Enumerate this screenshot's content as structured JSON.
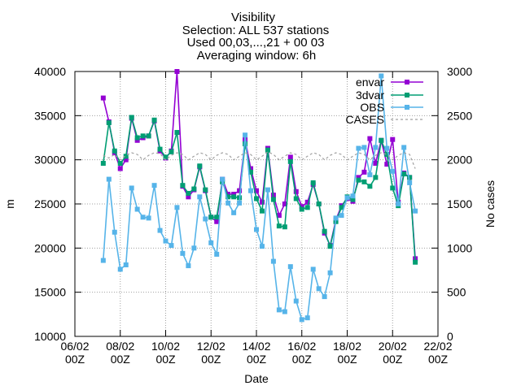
{
  "chart_data": {
    "type": "line",
    "title_lines": [
      "Visibility",
      "Selection: ALL    537 stations",
      "Used 00,03,...,21 + 00 03",
      "Averaging window:  6h"
    ],
    "xlabel": "Date",
    "ylabel": "m",
    "y2label": "No cases",
    "x_ticks": [
      {
        "t": 0,
        "label": [
          "06/02",
          "00Z"
        ]
      },
      {
        "t": 2,
        "label": [
          "08/02",
          "00Z"
        ]
      },
      {
        "t": 4,
        "label": [
          "10/02",
          "00Z"
        ]
      },
      {
        "t": 6,
        "label": [
          "12/02",
          "00Z"
        ]
      },
      {
        "t": 8,
        "label": [
          "14/02",
          "00Z"
        ]
      },
      {
        "t": 10,
        "label": [
          "16/02",
          "00Z"
        ]
      },
      {
        "t": 12,
        "label": [
          "18/02",
          "00Z"
        ]
      },
      {
        "t": 14,
        "label": [
          "20/02",
          "00Z"
        ]
      },
      {
        "t": 16,
        "label": [
          "22/02",
          "00Z"
        ]
      }
    ],
    "xlim": [
      0,
      16
    ],
    "ylim": [
      10000,
      40000
    ],
    "y_ticks": [
      10000,
      15000,
      20000,
      25000,
      30000,
      35000,
      40000
    ],
    "y2lim": [
      0,
      3000
    ],
    "y2_ticks": [
      0,
      500,
      1000,
      1500,
      2000,
      2500,
      3000
    ],
    "grid": true,
    "legend_position": "top-right",
    "series": [
      {
        "name": "envar",
        "color": "#9400d3",
        "axis": "y",
        "values": [
          37000,
          34300,
          30800,
          29000,
          30000,
          34700,
          32200,
          32500,
          32700,
          34400,
          31000,
          30200,
          31000,
          40000,
          27000,
          25800,
          26600,
          29200,
          26500,
          23500,
          23000,
          27800,
          26100,
          26100,
          26500,
          32300,
          29000,
          26500,
          25200,
          31300,
          26000,
          23700,
          25000,
          30300,
          26400,
          24700,
          25200,
          27200,
          25000,
          21700,
          20300,
          23200,
          24800,
          25600,
          25300,
          28000,
          28600,
          32400,
          29600,
          32200,
          29500,
          32300,
          25200,
          28500,
          28000,
          18800
        ]
      },
      {
        "name": "3dvar",
        "color": "#009e73",
        "axis": "y",
        "values": [
          29600,
          34200,
          31000,
          29600,
          30400,
          34800,
          32500,
          32700,
          32700,
          34500,
          31200,
          30300,
          30900,
          33100,
          27100,
          26200,
          26700,
          29300,
          26600,
          23500,
          23500,
          27500,
          25800,
          25800,
          25700,
          31800,
          28600,
          25600,
          24200,
          31100,
          25500,
          22500,
          22400,
          29800,
          25600,
          24400,
          24600,
          27400,
          25000,
          21900,
          20200,
          23000,
          24600,
          25800,
          25500,
          27700,
          27500,
          27000,
          28000,
          32200,
          30600,
          26800,
          24800,
          28400,
          28000,
          18400
        ]
      },
      {
        "name": "OBS",
        "color": "#56b4e9",
        "axis": "y",
        "values": [
          18600,
          27800,
          21800,
          17600,
          18100,
          26800,
          24400,
          23500,
          23400,
          27100,
          22000,
          20800,
          20300,
          24600,
          19400,
          18000,
          20000,
          25800,
          23300,
          20600,
          19300,
          27800,
          25100,
          24000,
          25100,
          32800,
          26500,
          22100,
          20200,
          26600,
          18500,
          13000,
          12800,
          17900,
          14000,
          11900,
          12100,
          17600,
          15400,
          14500,
          17200,
          23400,
          23700,
          25700,
          25900,
          31300,
          31400,
          28300,
          31400,
          39500,
          31300,
          28700,
          25000,
          31400,
          27400,
          24200
        ]
      },
      {
        "name": "CASES",
        "color": "#a0a0a0",
        "axis": "y2",
        "dashed": true,
        "values": [
          2050,
          2020,
          2060,
          2000,
          2050,
          2080,
          2060,
          2000,
          2050,
          2080,
          2070,
          2000,
          2050,
          2080,
          2060,
          2000,
          2040,
          2080,
          2060,
          2000,
          2050,
          2080,
          2060,
          2000,
          2040,
          2080,
          2060,
          2000,
          2040,
          2090,
          2060,
          2000,
          2040,
          2080,
          2060,
          2000,
          2040,
          2080,
          2060,
          2000,
          2050,
          2080,
          2060,
          2000,
          2040,
          2080,
          2060,
          2000,
          2050,
          2080,
          2060,
          2000,
          2050,
          2080,
          2060,
          1900
        ]
      }
    ],
    "x_start": 1.25,
    "x_step": 0.25
  }
}
